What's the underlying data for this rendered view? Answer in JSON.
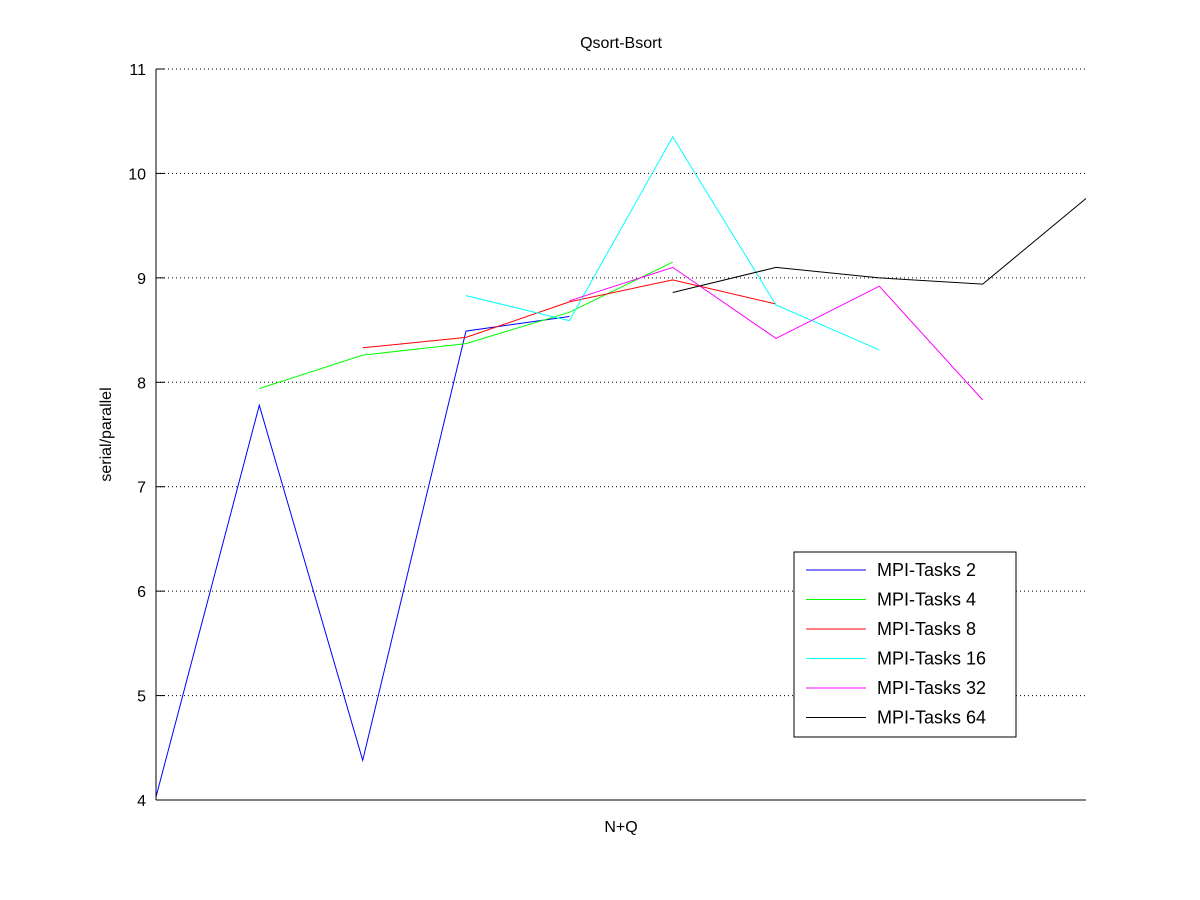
{
  "chart_data": {
    "type": "line",
    "title": "Qsort-Bsort",
    "xlabel": "N+Q",
    "ylabel": "serial/parallel",
    "xlim": [
      1,
      10
    ],
    "ylim": [
      4,
      11
    ],
    "yticks": [
      4,
      5,
      6,
      7,
      8,
      9,
      10,
      11
    ],
    "xticks": [],
    "grid": "y-dotted",
    "legend_position": "lower-right",
    "series": [
      {
        "name": "MPI-Tasks 2",
        "color": "#0000ff",
        "x": [
          1,
          2,
          3,
          4,
          5
        ],
        "y": [
          4.03,
          7.78,
          4.38,
          8.49,
          8.63
        ]
      },
      {
        "name": "MPI-Tasks 4",
        "color": "#00ff00",
        "x": [
          2,
          3,
          4,
          5,
          6
        ],
        "y": [
          7.94,
          8.26,
          8.37,
          8.67,
          9.15
        ]
      },
      {
        "name": "MPI-Tasks 8",
        "color": "#ff0000",
        "x": [
          3,
          4,
          5,
          6,
          7
        ],
        "y": [
          8.33,
          8.43,
          8.77,
          8.98,
          8.75
        ]
      },
      {
        "name": "MPI-Tasks 16",
        "color": "#00ffff",
        "x": [
          4,
          5,
          6,
          7,
          8
        ],
        "y": [
          8.83,
          8.59,
          10.35,
          8.74,
          8.31
        ]
      },
      {
        "name": "MPI-Tasks 32",
        "color": "#ff00ff",
        "x": [
          5,
          6,
          7,
          8,
          9
        ],
        "y": [
          8.78,
          9.1,
          8.42,
          8.92,
          7.83
        ]
      },
      {
        "name": "MPI-Tasks 64",
        "color": "#000000",
        "x": [
          6,
          7,
          8,
          9,
          10
        ],
        "y": [
          8.86,
          9.1,
          9.0,
          8.94,
          9.76
        ]
      }
    ]
  }
}
